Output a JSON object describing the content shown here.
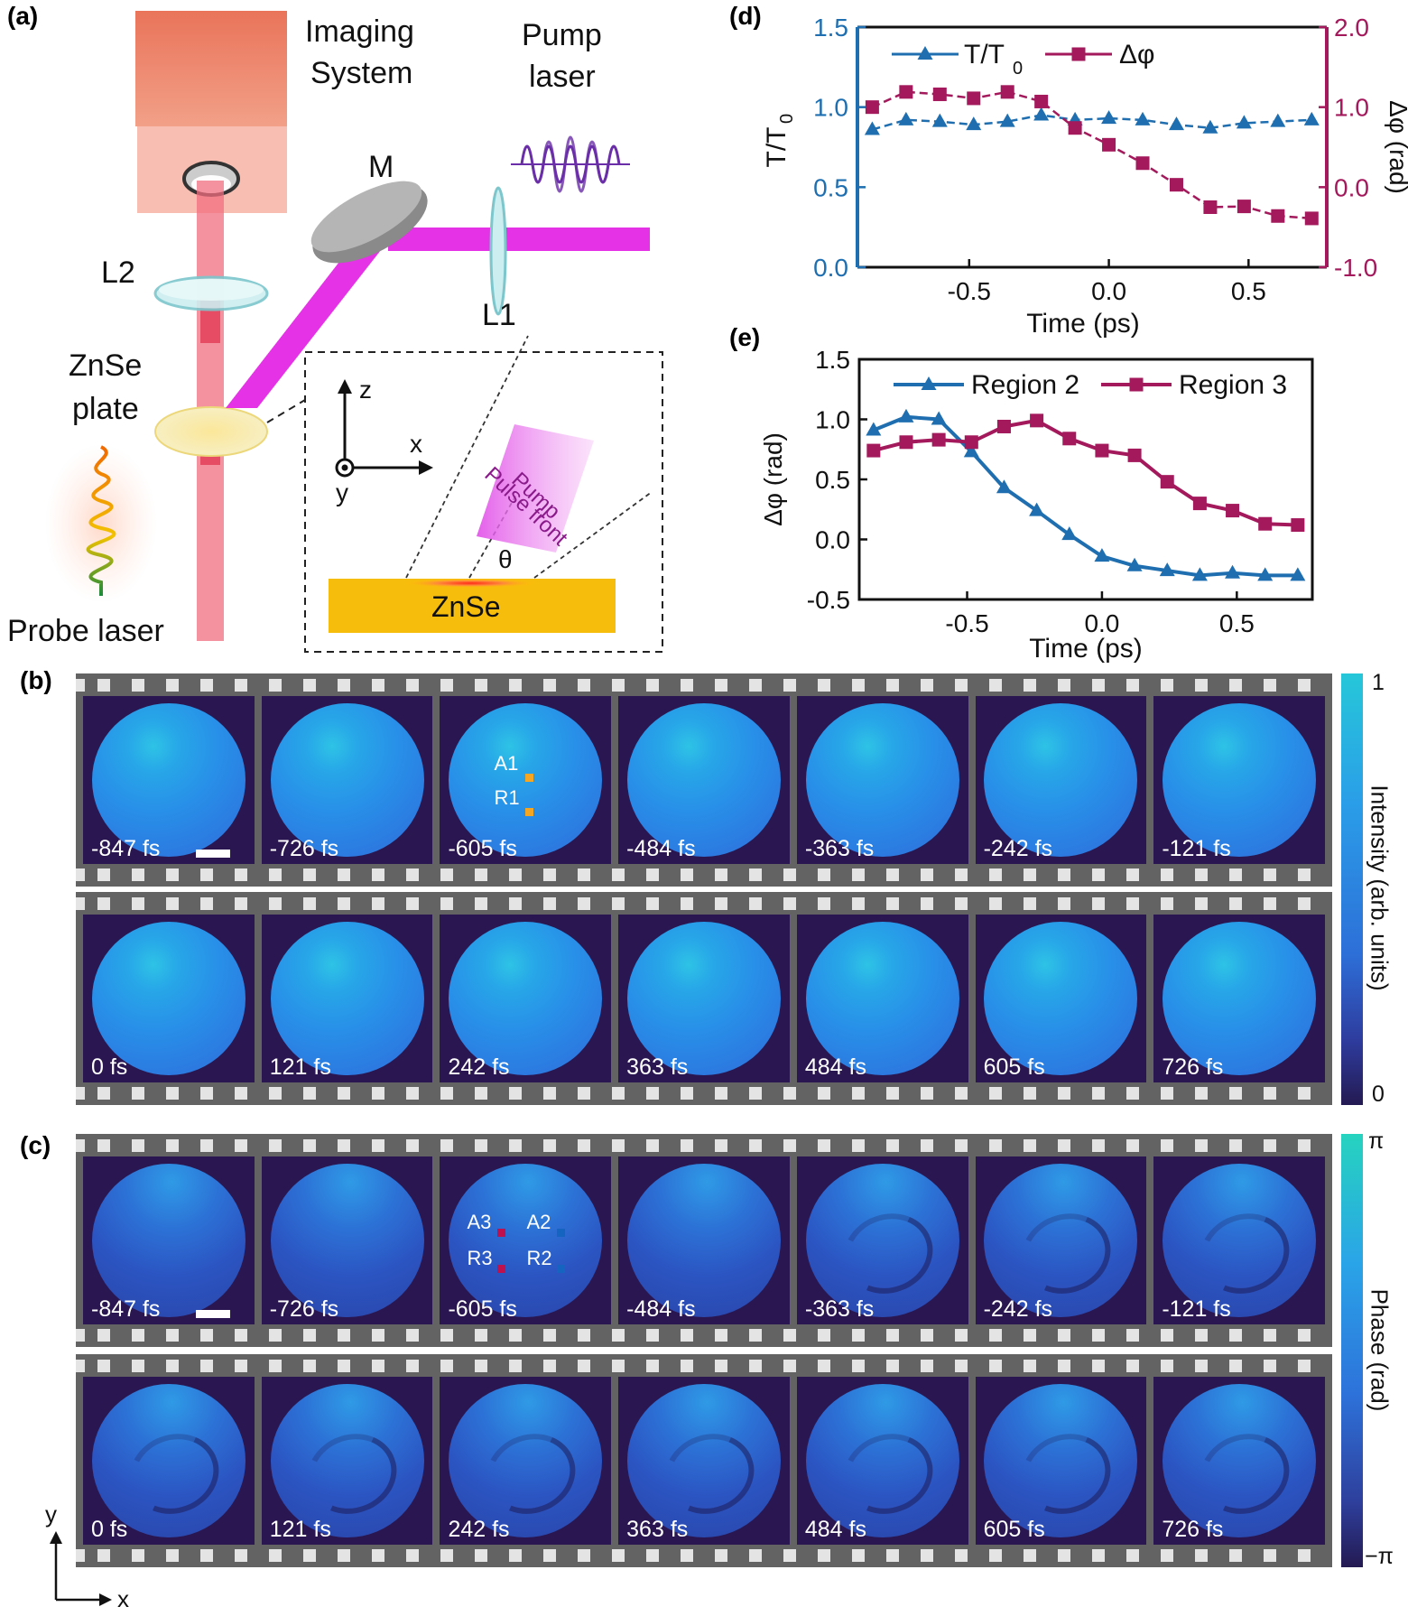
{
  "panels": {
    "a": "(a)",
    "b": "(b)",
    "c": "(c)",
    "d": "(d)",
    "e": "(e)"
  },
  "setup": {
    "imaging_line1": "Imaging",
    "imaging_line2": "System",
    "pump_line1": "Pump",
    "pump_line2": "laser",
    "mirror": "M",
    "lens2": "L2",
    "lens1": "L1",
    "plate_line1": "ZnSe",
    "plate_line2": "plate",
    "probe": "Probe laser",
    "inset": {
      "axis_z": "z",
      "axis_x": "x",
      "axis_y": "y",
      "pump_line1": "Pump",
      "pump_line2": "Pulse front",
      "theta": "θ",
      "material": "ZnSe"
    }
  },
  "frames": {
    "row1": [
      "-847 fs",
      "-726 fs",
      "-605 fs",
      "-484 fs",
      "-363 fs",
      "-242 fs",
      "-121 fs"
    ],
    "row2": [
      "0 fs",
      "121 fs",
      "242 fs",
      "363 fs",
      "484 fs",
      "605 fs",
      "726 fs"
    ],
    "markers_b": {
      "a1": "A1",
      "r1": "R1"
    },
    "markers_c": {
      "a3": "A3",
      "a2": "A2",
      "r3": "R3",
      "r2": "R2"
    }
  },
  "colorbars": {
    "intensity": {
      "max": "1",
      "min": "0",
      "title": "Intensity (arb. units)"
    },
    "phase": {
      "max": "π",
      "min": "−π",
      "title": "Phase (rad)"
    }
  },
  "axes_corner": {
    "y": "y",
    "x": "x"
  },
  "colors": {
    "blue": "#1f6fb0",
    "crimson": "#a3195b",
    "marker_yellow": "#f5a623",
    "marker_red": "#c0114f",
    "marker_blue": "#1565c0"
  },
  "chart_data": [
    {
      "id": "d",
      "type": "line",
      "x": [
        -0.847,
        -0.726,
        -0.605,
        -0.484,
        -0.363,
        -0.242,
        -0.121,
        0.0,
        0.121,
        0.242,
        0.363,
        0.484,
        0.605,
        0.726
      ],
      "series": [
        {
          "name": "T/T0",
          "axis": "left",
          "marker": "triangle",
          "values": [
            0.86,
            0.92,
            0.91,
            0.89,
            0.91,
            0.95,
            0.92,
            0.93,
            0.92,
            0.89,
            0.87,
            0.9,
            0.91,
            0.92
          ]
        },
        {
          "name": "Δφ",
          "axis": "right",
          "marker": "square",
          "values": [
            1.0,
            1.19,
            1.16,
            1.11,
            1.19,
            1.07,
            0.74,
            0.53,
            0.3,
            0.03,
            -0.25,
            -0.24,
            -0.36,
            -0.39
          ]
        }
      ],
      "xlim": [
        -0.9,
        0.78
      ],
      "xticks": [
        "-0.5",
        "0.0",
        "0.5"
      ],
      "xtick_values": [
        -0.5,
        0.0,
        0.5
      ],
      "ylim_left": [
        0.0,
        1.5
      ],
      "yticks_left": [
        "0.0",
        "0.5",
        "1.0",
        "1.5"
      ],
      "ylim_right": [
        -1.0,
        2.0
      ],
      "yticks_right": [
        "-1.0",
        "0.0",
        "1.0",
        "2.0"
      ],
      "xlabel": "Time (ps)",
      "ylabel_left_main": "T/T",
      "ylabel_left_sub": "0",
      "ylabel_right": "Δφ (rad)",
      "legend": {
        "t_main": "T/T",
        "t_sub": "0",
        "phi": "Δφ"
      }
    },
    {
      "id": "e",
      "type": "line",
      "x": [
        -0.847,
        -0.726,
        -0.605,
        -0.484,
        -0.363,
        -0.242,
        -0.121,
        0.0,
        0.121,
        0.242,
        0.363,
        0.484,
        0.605,
        0.726
      ],
      "series": [
        {
          "name": "Region 2",
          "marker": "triangle",
          "values": [
            0.91,
            1.02,
            1.0,
            0.73,
            0.43,
            0.24,
            0.04,
            -0.14,
            -0.22,
            -0.26,
            -0.3,
            -0.28,
            -0.3,
            -0.3
          ]
        },
        {
          "name": "Region 3",
          "marker": "square",
          "values": [
            0.74,
            0.81,
            0.83,
            0.81,
            0.94,
            0.99,
            0.84,
            0.74,
            0.7,
            0.48,
            0.3,
            0.24,
            0.13,
            0.12
          ]
        }
      ],
      "xlim": [
        -0.9,
        0.78
      ],
      "xticks": [
        "-0.5",
        "0.0",
        "0.5"
      ],
      "xtick_values": [
        -0.5,
        0.0,
        0.5
      ],
      "ylim": [
        -0.5,
        1.5
      ],
      "yticks": [
        "-0.5",
        "0.0",
        "0.5",
        "1.0",
        "1.5"
      ],
      "xlabel": "Time (ps)",
      "ylabel": "Δφ (rad)"
    }
  ]
}
